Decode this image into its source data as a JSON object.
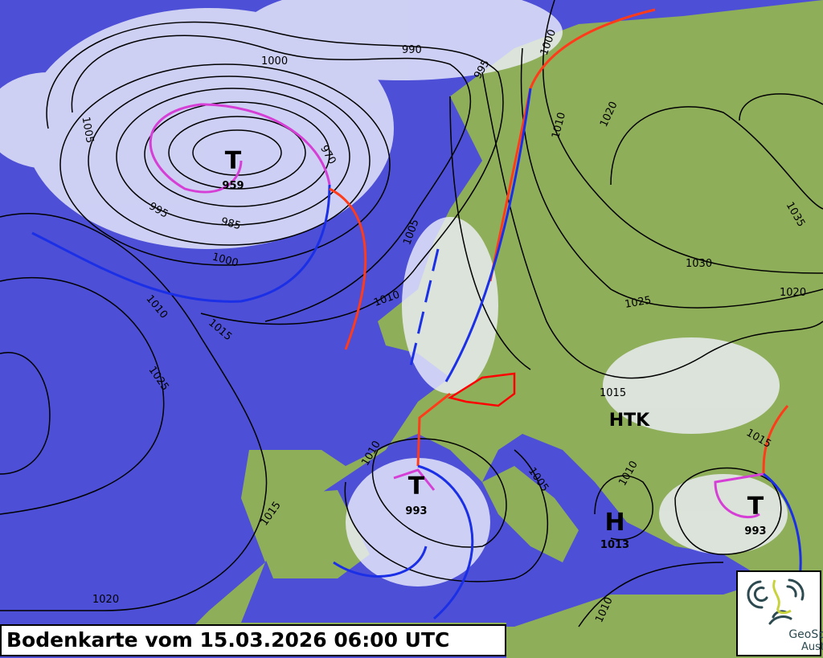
{
  "caption": "Bodenkarte vom 15.03.2026 06:00 UTC",
  "logo": {
    "line1": "GeoSphere",
    "line2": "Austria"
  },
  "colors": {
    "sea": "#4d4fd6",
    "land": "#8fae5a",
    "cloud": "#eef0fb",
    "isobar": "#000000",
    "cold_front": "#1a2fe6",
    "warm_front": "#ff3b1a",
    "occlusion": "#d63fd6",
    "austria_border": "#ff0000"
  },
  "pressure_centers": [
    {
      "type": "T",
      "value": "959"
    },
    {
      "type": "T",
      "value": "993"
    },
    {
      "type": "H",
      "value": "1013"
    },
    {
      "type": "T",
      "value": "993"
    }
  ],
  "htk_label": "HTK",
  "isobar_labels": [
    "1000",
    "990",
    "995",
    "1005",
    "1000",
    "1010",
    "1020",
    "1035",
    "1030",
    "1025",
    "1020",
    "985",
    "995",
    "1000",
    "970",
    "1005",
    "1010",
    "1010",
    "1015",
    "1025",
    "1015",
    "1015",
    "1010",
    "1015",
    "1005",
    "1010",
    "1020",
    "1010"
  ]
}
